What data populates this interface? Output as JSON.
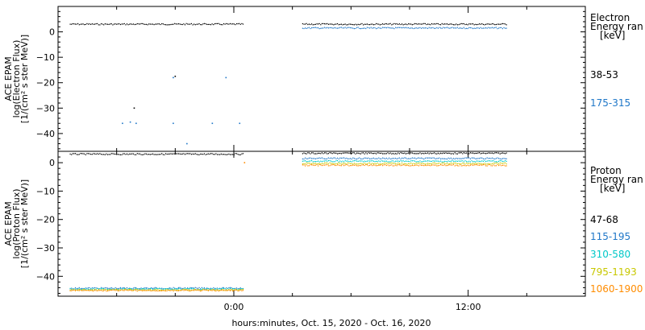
{
  "chart_data": {
    "type": "scatter",
    "x_axis": {
      "label": "hours:minutes, Oct. 15, 2020 - Oct. 16, 2020",
      "range_hours": [
        -9,
        18
      ],
      "ticks": [
        {
          "value": 0,
          "label": "0:00"
        },
        {
          "value": 12,
          "label": "12:00"
        }
      ]
    },
    "panels": [
      {
        "id": "electron",
        "ylabel": [
          "ACE EPAM",
          "log(Electron Flux)",
          "[1/(cm² s ster MeV)]"
        ],
        "ylim": [
          -47,
          10
        ],
        "yticks": [
          0,
          -10,
          -20,
          -30,
          -40
        ],
        "legend_title": [
          "Electron",
          "Energy ran",
          "[keV]"
        ],
        "series": [
          {
            "name": "38-53",
            "color": "#000000",
            "y_level": 3.0,
            "segments": [
              [
                -8.4,
                0.5
              ],
              [
                3.5,
                14.0
              ]
            ],
            "outliers": [
              [
                -5.1,
                -30
              ],
              [
                -3.0,
                -17.5
              ]
            ]
          },
          {
            "name": "175-315",
            "color": "#1f77c8",
            "y_level": 1.5,
            "segments": [
              [
                3.5,
                14.0
              ]
            ],
            "outliers": [
              [
                -5.7,
                -36
              ],
              [
                -5.3,
                -35.5
              ],
              [
                -5.0,
                -36
              ],
              [
                -3.1,
                -36
              ],
              [
                -3.1,
                -18
              ],
              [
                -2.4,
                -44
              ],
              [
                -1.1,
                -36
              ],
              [
                -0.4,
                -18
              ],
              [
                0.3,
                -36
              ]
            ]
          }
        ]
      },
      {
        "id": "proton",
        "ylabel": [
          "ACE EPAM",
          "log(Proton Flux)",
          "[1/(cm² s ster MeV)]"
        ],
        "ylim": [
          -47,
          4
        ],
        "yticks": [
          0,
          -10,
          -20,
          -30,
          -40
        ],
        "legend_title": [
          "Proton",
          "Energy ran",
          "[keV]"
        ],
        "series": [
          {
            "name": "47-68",
            "color": "#000000",
            "pieces": [
              {
                "x": [
                  -8.4,
                  0.5
                ],
                "y": 3.0
              },
              {
                "x": [
                  3.5,
                  14.0
                ],
                "y": 3.3
              }
            ]
          },
          {
            "name": "115-195",
            "color": "#1f77c8",
            "pieces": [
              {
                "x": [
                  -8.4,
                  0.5
                ],
                "y": -44.2
              },
              {
                "x": [
                  3.5,
                  14.0
                ],
                "y": 1.5
              }
            ]
          },
          {
            "name": "310-580",
            "color": "#00c8c8",
            "pieces": [
              {
                "x": [
                  -8.4,
                  0.5
                ],
                "y": -44.5
              },
              {
                "x": [
                  3.5,
                  14.0
                ],
                "y": 0.5
              }
            ]
          },
          {
            "name": "795-1193",
            "color": "#c8c800",
            "pieces": [
              {
                "x": [
                  -8.4,
                  0.5
                ],
                "y": -44.8
              },
              {
                "x": [
                  3.5,
                  14.0
                ],
                "y": -0.3
              }
            ]
          },
          {
            "name": "1060-1900",
            "color": "#ff8c00",
            "pieces": [
              {
                "x": [
                  -8.4,
                  0.5
                ],
                "y": -45.0
              },
              {
                "x": [
                  3.5,
                  14.0
                ],
                "y": -0.9
              }
            ],
            "outliers": [
              [
                0.55,
                0.0
              ]
            ]
          }
        ]
      }
    ]
  }
}
